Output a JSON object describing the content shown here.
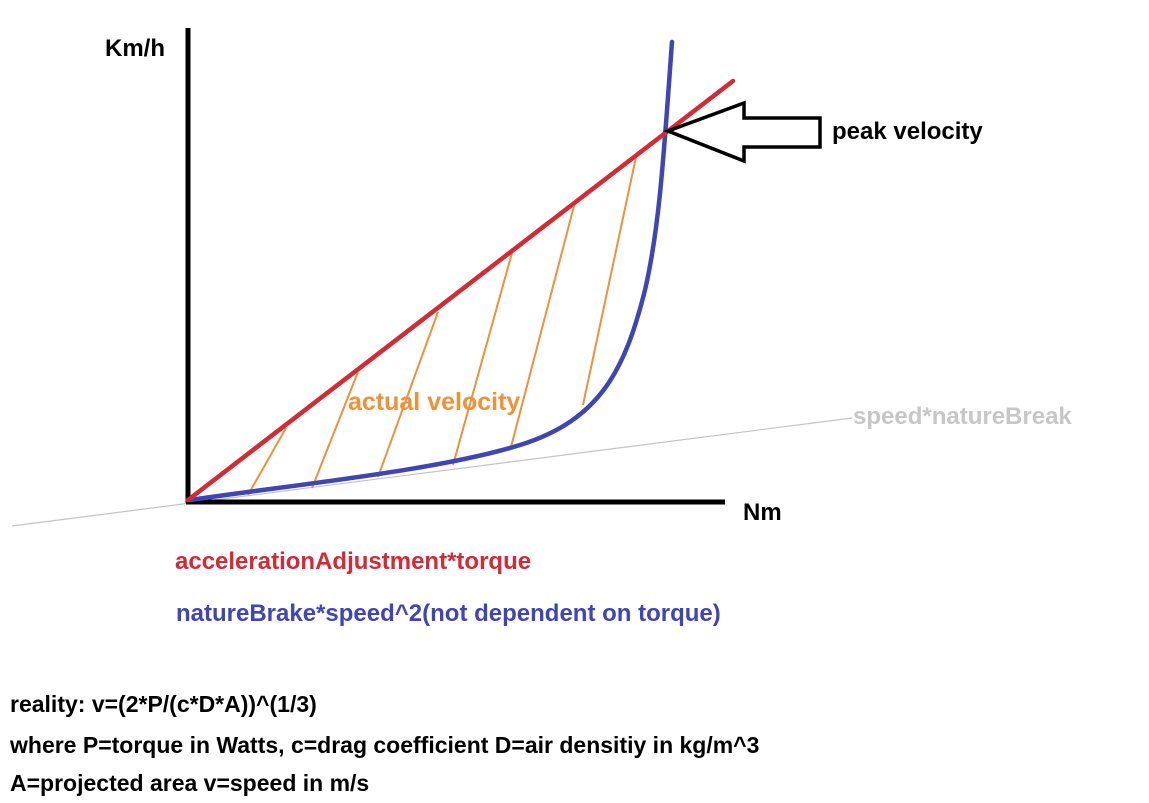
{
  "axes": {
    "y_label": "Km/h",
    "x_label": "Nm"
  },
  "labels": {
    "peak_velocity": "peak velocity",
    "actual_velocity": "actual velocity",
    "speed_nature_break": "speed*natureBreak"
  },
  "legend": {
    "red_line": "accelerationAdjustment*torque",
    "blue_curve": "natureBrake*speed^2(not dependent on torque)"
  },
  "notes": [
    "reality: v=(2*P/(c*D*A))^(1/3)",
    "where P=torque in Watts, c=drag coefficient D=air densitiy in kg/m^3",
    "A=projected area v=speed in m/s"
  ],
  "colors": {
    "axis": "#000000",
    "red_line": "#d42a33",
    "blue_curve": "#3f45b5",
    "hatch": "#f0913a",
    "gray_line": "#c4c4c4",
    "gray_text": "#c7c7c7"
  }
}
